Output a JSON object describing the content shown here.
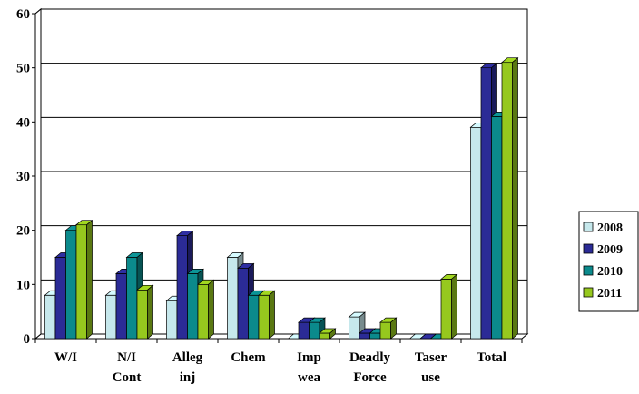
{
  "chart_data": {
    "type": "bar",
    "title": "",
    "xlabel": "",
    "ylabel": "",
    "ylim": [
      0,
      60
    ],
    "yticks": [
      0,
      10,
      20,
      30,
      40,
      50,
      60
    ],
    "grid": true,
    "legend_position": "right",
    "categories": [
      [
        "W/I"
      ],
      [
        "N/I",
        "Cont"
      ],
      [
        "Alleg",
        "inj"
      ],
      [
        "Chem"
      ],
      [
        "Imp",
        "wea"
      ],
      [
        "Deadly",
        "Force"
      ],
      [
        "Taser",
        "use"
      ],
      [
        "Total"
      ]
    ],
    "series": [
      {
        "name": "2008",
        "color": "#c6e8ec",
        "values": [
          8,
          8,
          7,
          15,
          0,
          4,
          0,
          39
        ]
      },
      {
        "name": "2009",
        "color": "#2b2b96",
        "values": [
          15,
          12,
          19,
          13,
          3,
          1,
          0,
          50
        ]
      },
      {
        "name": "2010",
        "color": "#0b8a8c",
        "values": [
          20,
          15,
          12,
          8,
          3,
          1,
          0,
          41
        ]
      },
      {
        "name": "2011",
        "color": "#96c81e",
        "values": [
          21,
          9,
          10,
          8,
          1,
          3,
          11,
          51
        ]
      }
    ]
  }
}
